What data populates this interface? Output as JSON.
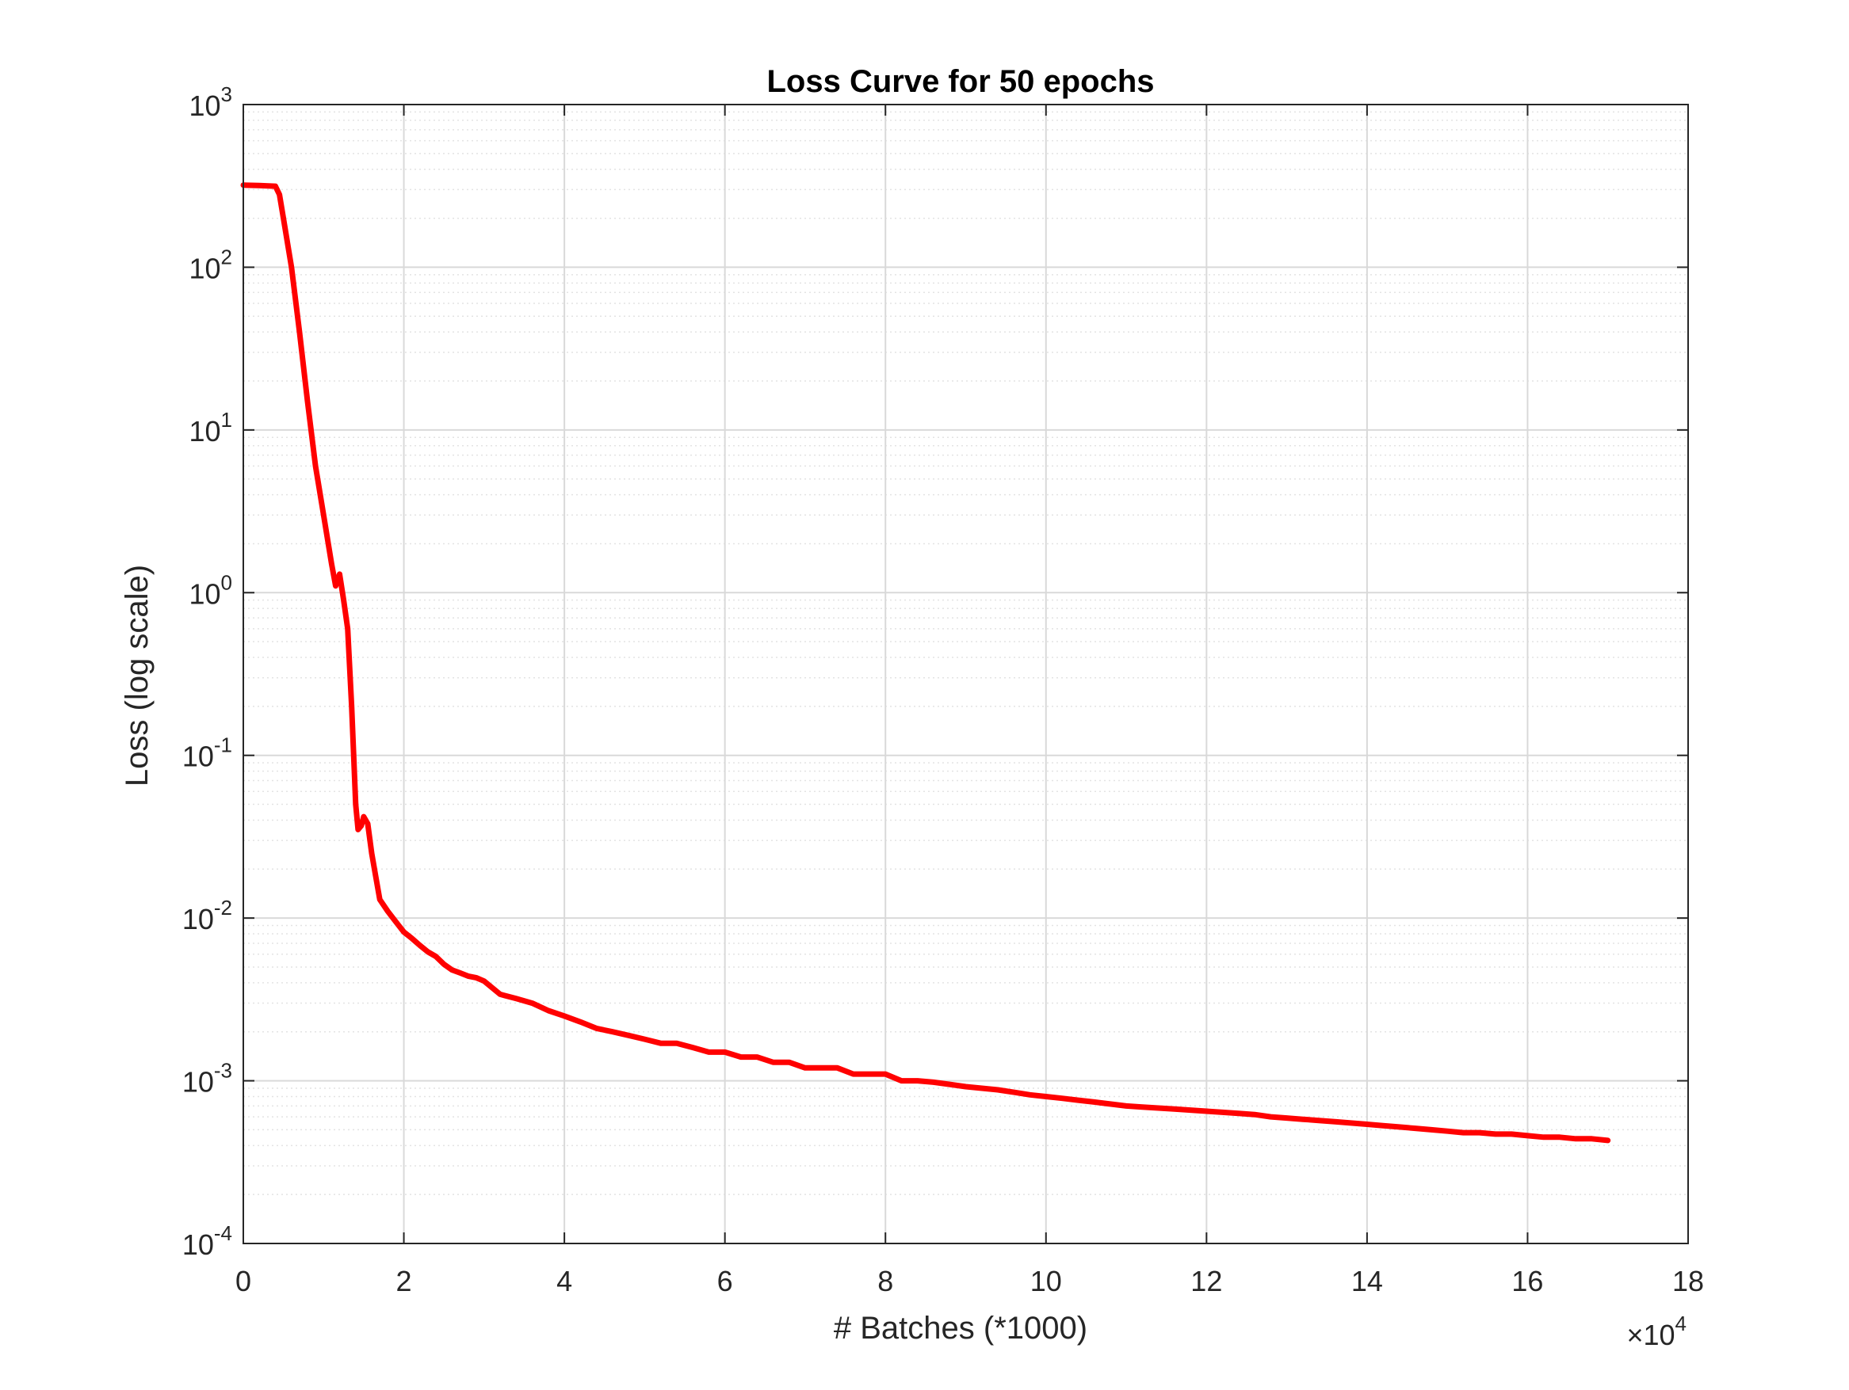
{
  "chart_data": {
    "type": "line",
    "title": "Loss Curve for 50 epochs",
    "xlabel": "# Batches (*1000)",
    "ylabel": "Loss (log scale)",
    "xlim": [
      0,
      180000
    ],
    "ylim": [
      0.0001,
      1000
    ],
    "yscale": "log",
    "grid": true,
    "minor_grid_y": true,
    "x_ticks": [
      0,
      20000,
      40000,
      60000,
      80000,
      100000,
      120000,
      140000,
      160000,
      180000
    ],
    "x_tick_labels": [
      "0",
      "2",
      "4",
      "6",
      "8",
      "10",
      "12",
      "14",
      "16",
      "18"
    ],
    "x_exponent_label": {
      "prefix": "×10",
      "exponent": "4"
    },
    "y_ticks": [
      0.0001,
      0.001,
      0.01,
      0.1,
      1,
      10,
      100,
      1000
    ],
    "y_tick_labels": [
      {
        "base": "10",
        "exponent": "-4"
      },
      {
        "base": "10",
        "exponent": "-3"
      },
      {
        "base": "10",
        "exponent": "-2"
      },
      {
        "base": "10",
        "exponent": "-1"
      },
      {
        "base": "10",
        "exponent": "0"
      },
      {
        "base": "10",
        "exponent": "1"
      },
      {
        "base": "10",
        "exponent": "2"
      },
      {
        "base": "10",
        "exponent": "3"
      }
    ],
    "series": [
      {
        "color": "#ff0000",
        "x": [
          0,
          2000,
          4000,
          4500,
          5000,
          6000,
          7000,
          8000,
          9000,
          10000,
          11000,
          11500,
          12000,
          12500,
          13000,
          13500,
          14000,
          14300,
          14700,
          15000,
          15500,
          16000,
          16500,
          17000,
          18000,
          19000,
          20000,
          21000,
          22000,
          23000,
          24000,
          25000,
          26000,
          27000,
          28000,
          29000,
          30000,
          32000,
          34000,
          36000,
          38000,
          40000,
          42000,
          44000,
          46000,
          48000,
          50000,
          52000,
          54000,
          56000,
          58000,
          60000,
          62000,
          64000,
          66000,
          68000,
          70000,
          72000,
          74000,
          76000,
          78000,
          80000,
          82000,
          84000,
          86000,
          88000,
          90000,
          92000,
          94000,
          96000,
          98000,
          100000,
          102000,
          104000,
          106000,
          108000,
          110000,
          112000,
          114000,
          116000,
          118000,
          120000,
          122000,
          124000,
          126000,
          128000,
          130000,
          132000,
          134000,
          136000,
          138000,
          140000,
          142000,
          144000,
          146000,
          148000,
          150000,
          152000,
          154000,
          156000,
          158000,
          160000,
          162000,
          164000,
          166000,
          168000,
          170000
        ],
        "y": [
          320,
          318,
          315,
          280,
          200,
          100,
          40,
          15,
          6,
          3,
          1.5,
          1.1,
          1.3,
          0.9,
          0.6,
          0.2,
          0.05,
          0.035,
          0.037,
          0.042,
          0.038,
          0.025,
          0.018,
          0.013,
          0.011,
          0.0095,
          0.0082,
          0.0075,
          0.0068,
          0.0062,
          0.0058,
          0.0052,
          0.0048,
          0.0046,
          0.0044,
          0.0043,
          0.0041,
          0.0034,
          0.0032,
          0.003,
          0.0027,
          0.0025,
          0.0023,
          0.0021,
          0.002,
          0.0019,
          0.0018,
          0.0017,
          0.0017,
          0.0016,
          0.0015,
          0.0015,
          0.0014,
          0.0014,
          0.0013,
          0.0013,
          0.0012,
          0.0012,
          0.0012,
          0.0011,
          0.0011,
          0.0011,
          0.001,
          0.001,
          0.00098,
          0.00095,
          0.00092,
          0.0009,
          0.00088,
          0.00085,
          0.00082,
          0.0008,
          0.00078,
          0.00076,
          0.00074,
          0.00072,
          0.0007,
          0.00069,
          0.00068,
          0.00067,
          0.00066,
          0.00065,
          0.00064,
          0.00063,
          0.00062,
          0.0006,
          0.00059,
          0.00058,
          0.00057,
          0.00056,
          0.00055,
          0.00054,
          0.00053,
          0.00052,
          0.00051,
          0.0005,
          0.00049,
          0.00048,
          0.00048,
          0.00047,
          0.00047,
          0.00046,
          0.00045,
          0.00045,
          0.00044,
          0.00044,
          0.00043
        ]
      }
    ]
  }
}
